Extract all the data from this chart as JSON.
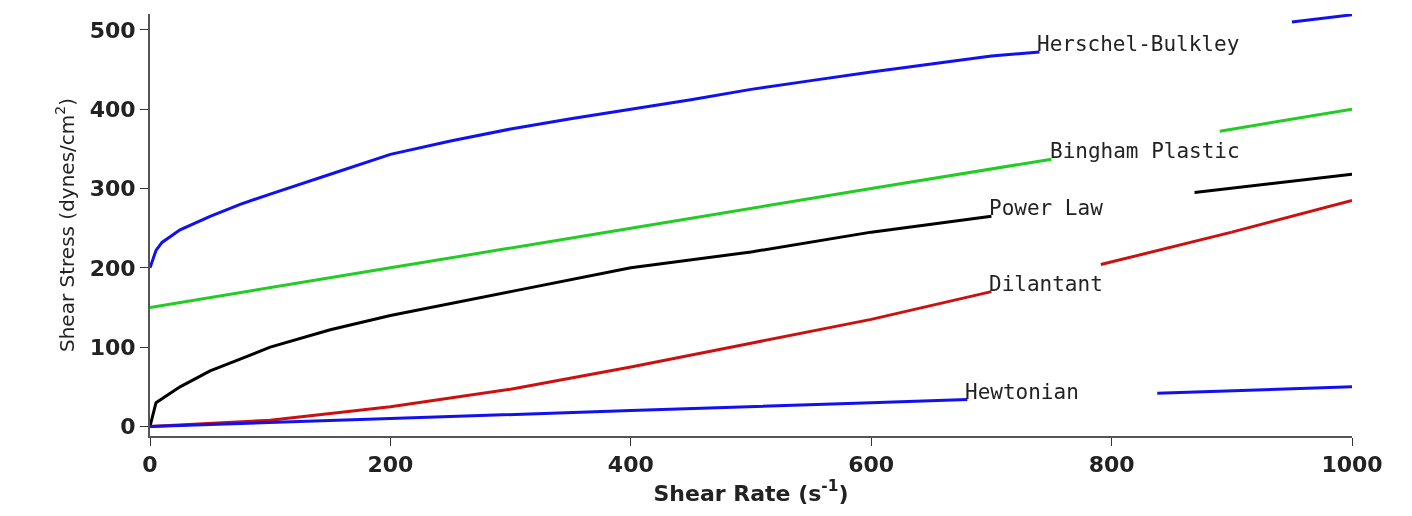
{
  "chart_data": {
    "type": "line",
    "xlabel": "Shear Rate (s$^{-1}$)",
    "ylabel": "Shear Stress (dynes/cm$^{2}$)",
    "xlim": [
      0,
      1000
    ],
    "ylim": [
      -12,
      520
    ],
    "xticks": [
      0,
      200,
      400,
      600,
      800,
      1000
    ],
    "yticks": [
      0,
      100,
      200,
      300,
      400,
      500
    ],
    "grid": false,
    "legend": false,
    "marker": "none",
    "line_style": "solid",
    "series": [
      {
        "name": "Herschel-Bulkley",
        "color": "#1010f0",
        "x": [
          0,
          5,
          10,
          25,
          50,
          75,
          100,
          150,
          200,
          250,
          300,
          350,
          400,
          450,
          500,
          550,
          600,
          650,
          700,
          740,
          950,
          1000
        ],
        "values": [
          200,
          222,
          232,
          248,
          265,
          280,
          293,
          318,
          343,
          360,
          375,
          388,
          400,
          412,
          425,
          436,
          447,
          457,
          467,
          472,
          null,
          519
        ]
      },
      {
        "name": "Bingham Plastic",
        "color": "#22cc22",
        "x": [
          0,
          200,
          400,
          600,
          750,
          890,
          1000
        ],
        "values": [
          150,
          200,
          250,
          300,
          337,
          null,
          400
        ]
      },
      {
        "name": "Power Law",
        "color": "#000000",
        "x": [
          0,
          5,
          25,
          50,
          75,
          100,
          150,
          200,
          300,
          400,
          500,
          600,
          700,
          869,
          1000
        ],
        "values": [
          0,
          30,
          50,
          70,
          85,
          100,
          122,
          140,
          170,
          200,
          220,
          245,
          265,
          null,
          318
        ]
      },
      {
        "name": "Dilantant",
        "color": "#cc1010",
        "x": [
          0,
          100,
          200,
          300,
          400,
          500,
          600,
          700,
          791,
          900,
          1000
        ],
        "values": [
          0,
          8,
          25,
          47,
          75,
          105,
          135,
          170,
          null,
          245,
          285
        ]
      },
      {
        "name": "Hewtonian",
        "color": "#1010f0",
        "x": [
          0,
          200,
          400,
          600,
          680,
          838,
          1000
        ],
        "values": [
          0,
          10,
          20,
          30,
          34,
          null,
          50
        ]
      }
    ]
  }
}
